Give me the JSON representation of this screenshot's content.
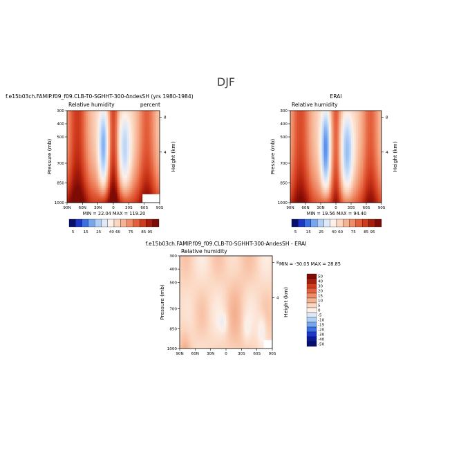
{
  "page": {
    "title": "DJF"
  },
  "chart_data": [
    {
      "type": "heatmap",
      "title": "f.e15b03ch.FAMIP.f09_f09.CLB-T0-SGHHT-300-AndesSH (yrs 1980-1984)",
      "subtitle_left": "Relative humidity",
      "subtitle_right": "percent",
      "xlabel": "",
      "ylabel": "Pressure (mb)",
      "y2label": "Height (km)",
      "x_ticks": [
        "90N",
        "60N",
        "30N",
        "0",
        "30S",
        "60S",
        "90S"
      ],
      "y_ticks": [
        1000,
        850,
        700,
        500,
        400,
        300
      ],
      "y2_ticks": [
        "8",
        "4"
      ],
      "ylim": [
        1000,
        300
      ],
      "stats": "MIN = 22.04   MAX = 119.20",
      "colorbar": {
        "levels": [
          5,
          15,
          25,
          40,
          60,
          75,
          85,
          95
        ],
        "colors": [
          "#08106e",
          "#1c36c8",
          "#3b6fe4",
          "#76a6f0",
          "#b0cff6",
          "#dde9f8",
          "#fdf0e8",
          "#fbd6c0",
          "#f6b394",
          "#f08c67",
          "#e45f3c",
          "#cf3b1d",
          "#a81c0b",
          "#7d0b06"
        ]
      }
    },
    {
      "type": "heatmap",
      "title": "ERAI",
      "subtitle_left": "Relative humidity",
      "xlabel": "",
      "ylabel": "Pressure (mb)",
      "y2label": "Height (km)",
      "x_ticks": [
        "90N",
        "60N",
        "30N",
        "0",
        "30S",
        "60S",
        "90S"
      ],
      "y_ticks": [
        1000,
        850,
        700,
        500,
        400,
        300
      ],
      "y2_ticks": [
        "8",
        "4"
      ],
      "ylim": [
        1000,
        300
      ],
      "stats": "MIN = 19.56   MAX = 94.40",
      "colorbar": {
        "levels": [
          5,
          15,
          25,
          40,
          60,
          75,
          85,
          95
        ],
        "colors": [
          "#08106e",
          "#1c36c8",
          "#3b6fe4",
          "#76a6f0",
          "#b0cff6",
          "#dde9f8",
          "#fdf0e8",
          "#fbd6c0",
          "#f6b394",
          "#f08c67",
          "#e45f3c",
          "#cf3b1d",
          "#a81c0b",
          "#7d0b06"
        ]
      }
    },
    {
      "type": "heatmap",
      "title": "f.e15b03ch.FAMIP.f09_f09.CLB-T0-SGHHT-300-AndesSH - ERAI",
      "subtitle_left": "Relative humidity",
      "xlabel": "",
      "ylabel": "Pressure (mb)",
      "y2label": "Height (km)",
      "x_ticks": [
        "90N",
        "60N",
        "30N",
        "0",
        "30S",
        "60S",
        "90S"
      ],
      "y_ticks": [
        1000,
        850,
        700,
        500,
        400,
        300
      ],
      "y2_ticks": [
        "8",
        "4"
      ],
      "ylim": [
        1000,
        300
      ],
      "stats": "MIN = -30.05   MAX = 28.85",
      "colorbar": {
        "levels": [
          50,
          40,
          30,
          20,
          15,
          10,
          5,
          0,
          -5,
          -10,
          -15,
          -20,
          -30,
          -40,
          -50
        ],
        "colors": [
          "#7d0b06",
          "#a81c0b",
          "#cf3b1d",
          "#e45f3c",
          "#f08c67",
          "#f6b394",
          "#fbd6c0",
          "#fdf0e8",
          "#dde9f8",
          "#b0cff6",
          "#76a6f0",
          "#3b6fe4",
          "#1c36c8",
          "#0a1b9a",
          "#08106e"
        ]
      }
    }
  ]
}
